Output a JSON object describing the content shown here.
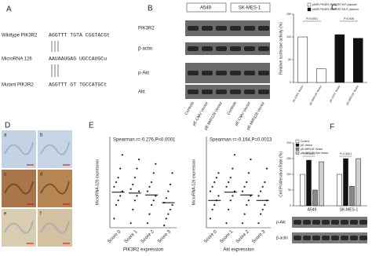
{
  "panel_a": {
    "label": "A",
    "rows": [
      {
        "name": "Wildtype PIK3R2",
        "sequence": "AGGTTT TGTA CGGTACGt"
      },
      {
        "name": "MicroRNA 126",
        "sequence": "AAUAAUGAG UGCCAUGCu"
      },
      {
        "name": "Mutant PIK3R2",
        "sequence": "AGGTTT GT TGCCATGCt"
      }
    ]
  },
  "panel_b": {
    "label": "B",
    "cell_lines": [
      "A549",
      "SK-MES-1"
    ],
    "proteins": [
      "PIK3R2",
      "β-actin",
      "p-Akt",
      "Akt"
    ],
    "lanes": [
      "Controls",
      "pE-CMV Vector",
      "pE-MiR126 Vector",
      "Controls",
      "pE-CMV Vector",
      "pE-MiR126 Vector"
    ]
  },
  "panel_d": {
    "label": "D",
    "images": [
      "a",
      "b",
      "c",
      "d",
      "e",
      "f"
    ]
  },
  "chart_data": [
    {
      "type": "bar",
      "label": "C",
      "ylabel": "Relative luciferase activity (%)",
      "categories": [
        "pE-CMV Vector",
        "pE-MiR126 Vector",
        "pE-CMV Vector",
        "pE-MiR126 Vector"
      ],
      "series": [
        {
          "name": "pMIR-PIK3R2-REPORT WT plasmid",
          "color": "#ffffff",
          "values": [
            100,
            30,
            null,
            null
          ]
        },
        {
          "name": "pMIR-PIK3R2-REPORT MUT plasmid",
          "color": "#111111",
          "values": [
            null,
            null,
            105,
            97
          ]
        }
      ],
      "ylim": [
        0,
        150
      ],
      "yticks": [
        0,
        50,
        100,
        150
      ],
      "annotations": [
        "P=0.0001",
        "P=0.626"
      ]
    },
    {
      "type": "dot",
      "label": "E",
      "title": "Spearman r=-0.276,P<0.0001",
      "xlabel": "PIK3R2 expression",
      "ylabel": "MicroRNA-126 expression",
      "categories": [
        "Score 0",
        "Score 1",
        "Score 2",
        "Score 3"
      ],
      "points": [
        [
          0.2,
          0.5,
          0.6,
          0.7,
          0.8,
          0.9,
          1.0,
          1.1,
          1.3,
          1.6
        ],
        [
          0.1,
          0.4,
          0.6,
          0.7,
          0.8,
          0.85,
          0.95,
          1.1,
          1.3,
          1.5
        ],
        [
          0.1,
          0.3,
          0.5,
          0.6,
          0.7,
          0.8,
          0.9,
          1.0,
          1.2,
          1.4
        ],
        [
          0.05,
          0.2,
          0.3,
          0.4,
          0.5,
          0.55,
          0.65,
          0.8,
          0.95,
          1.2
        ]
      ],
      "means": [
        0.78,
        0.76,
        0.72,
        0.55
      ],
      "ylim": [
        0,
        2
      ]
    },
    {
      "type": "dot",
      "title": "Spearman r=-0.164,P=0.0013",
      "xlabel": "Akt expression",
      "ylabel": "MicroRNA-126 expression",
      "categories": [
        "Score 0",
        "Score 1",
        "Score 2",
        "Score 3"
      ],
      "points": [
        [
          0.2,
          0.4,
          0.5,
          0.6,
          0.7,
          0.8,
          0.9,
          1.0,
          1.1,
          1.2
        ],
        [
          0.1,
          0.4,
          0.6,
          0.7,
          0.8,
          0.9,
          1.0,
          1.1,
          1.3,
          1.6
        ],
        [
          0.1,
          0.3,
          0.5,
          0.6,
          0.7,
          0.8,
          0.9,
          1.0,
          1.2,
          1.5
        ],
        [
          0.1,
          0.3,
          0.4,
          0.5,
          0.6,
          0.7,
          0.8,
          0.9,
          1.0,
          1.3
        ]
      ],
      "means": [
        0.6,
        0.78,
        0.72,
        0.6
      ],
      "ylim": [
        0,
        2
      ]
    },
    {
      "type": "grouped_bar",
      "label": "F",
      "ylabel": "Cell Proliferation Rate (%)",
      "categories": [
        "A549",
        "SK-MES-1"
      ],
      "series": [
        {
          "name": "Control",
          "color": "#ffffff",
          "values": [
            100,
            100
          ]
        },
        {
          "name": "pE-Vector",
          "color": "#111111",
          "values": [
            145,
            150
          ]
        },
        {
          "name": "pE-MiR126 Vector",
          "color": "#888888",
          "values": [
            50,
            62
          ]
        },
        {
          "name": "pE-MiR126+Akt Vector",
          "color": "#d0d0d0",
          "values": [
            140,
            150
          ]
        }
      ],
      "ylim": [
        0,
        200
      ],
      "yticks": [
        0,
        50,
        100,
        150,
        200
      ],
      "annotations": [
        "P=0.0001",
        "P=0.0001"
      ],
      "blot_labels": [
        "p-Akt",
        "β-actin"
      ]
    }
  ]
}
